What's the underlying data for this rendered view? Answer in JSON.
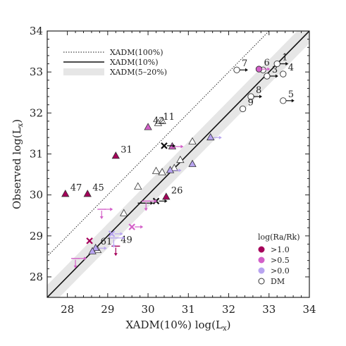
{
  "chart_data": {
    "type": "scatter",
    "xlabel": "XADM(10%) log(L",
    "xlabel_sub": "x",
    "ylabel": "Observed log(L",
    "ylabel_sub": "x",
    "xlim": [
      27.5,
      34
    ],
    "ylim": [
      27.5,
      34
    ],
    "xticks": [
      "28",
      "29",
      "30",
      "31",
      "32",
      "33",
      "34"
    ],
    "yticks": [
      "28",
      "29",
      "30",
      "31",
      "32",
      "33",
      "34"
    ],
    "tick_values": [
      28,
      29,
      30,
      31,
      32,
      33,
      34
    ],
    "band_half_width": 0.3,
    "colors": {
      "dark": "#a5005a",
      "mid": "#d35fc8",
      "light": "#b8a4f0",
      "band": "#e6e6e6"
    },
    "lines_legend": [
      {
        "label": "XADM(100%)",
        "style": "dotted",
        "offset": 1.0
      },
      {
        "label": "XADM(10%)",
        "style": "solid",
        "offset": 0.0
      },
      {
        "label": "XADM(5–20%)",
        "style": "band"
      }
    ],
    "points_legend_title": "log(Ra/Rk)",
    "points_legend": [
      {
        "label": ">1.0",
        "color": "dark"
      },
      {
        "label": ">0.5",
        "color": "mid"
      },
      {
        "label": ">0.0",
        "color": "light"
      },
      {
        "label": "DM",
        "color": "none"
      }
    ],
    "series": [
      {
        "name": "DM",
        "marker": "circle",
        "color": "none",
        "points": [
          {
            "x": 33.2,
            "y": 33.2,
            "label": "1",
            "arrow": "right"
          },
          {
            "x": 32.95,
            "y": 32.9,
            "label": "3",
            "arrow": "right"
          },
          {
            "x": 33.35,
            "y": 32.95,
            "label": "4"
          },
          {
            "x": 33.35,
            "y": 32.3,
            "label": "5",
            "arrow": "right"
          },
          {
            "x": 32.2,
            "y": 33.05,
            "label": "7",
            "arrow": "right"
          },
          {
            "x": 32.55,
            "y": 32.4,
            "label": "8",
            "arrow": "right"
          },
          {
            "x": 32.35,
            "y": 32.1,
            "label": "9"
          },
          {
            "x": 32.85,
            "y": 33.05
          }
        ]
      },
      {
        "name": ">0.5 circle",
        "marker": "circle",
        "color": "mid",
        "points": [
          {
            "x": 32.75,
            "y": 33.07,
            "label": "6",
            "arrow": "right"
          }
        ]
      },
      {
        "name": "DM triangles",
        "marker": "triangle",
        "color": "none",
        "points": [
          {
            "x": 30.25,
            "y": 31.75,
            "label": "11"
          },
          {
            "x": 30.35,
            "y": 31.8
          },
          {
            "x": 31.1,
            "y": 31.3
          },
          {
            "x": 30.8,
            "y": 30.85
          },
          {
            "x": 30.65,
            "y": 30.65
          },
          {
            "x": 30.2,
            "y": 30.58
          },
          {
            "x": 30.35,
            "y": 30.55
          },
          {
            "x": 29.75,
            "y": 30.2
          },
          {
            "x": 29.4,
            "y": 29.55
          },
          {
            "x": 28.75,
            "y": 28.65
          }
        ]
      },
      {
        "name": ">1.0",
        "marker": "triangle",
        "color": "dark",
        "points": [
          {
            "x": 27.95,
            "y": 30.02,
            "label": "47"
          },
          {
            "x": 28.5,
            "y": 30.02,
            "label": "45"
          },
          {
            "x": 29.2,
            "y": 30.95,
            "label": "31"
          },
          {
            "x": 30.45,
            "y": 29.95,
            "label": "26"
          }
        ]
      },
      {
        "name": ">0.5",
        "marker": "triangle",
        "color": "mid",
        "points": [
          {
            "x": 30.0,
            "y": 31.65,
            "label": "42"
          },
          {
            "x": 30.6,
            "y": 31.18,
            "arrow": "right"
          }
        ]
      },
      {
        "name": ">0.0",
        "marker": "triangle",
        "color": "light",
        "points": [
          {
            "x": 31.55,
            "y": 31.4,
            "arrow": "right"
          },
          {
            "x": 31.1,
            "y": 30.75
          },
          {
            "x": 30.55,
            "y": 30.6,
            "arrow": "right"
          },
          {
            "x": 28.7,
            "y": 28.7,
            "label": "61",
            "arrow": "right"
          },
          {
            "x": 28.62,
            "y": 28.62
          }
        ]
      },
      {
        "name": "crosses",
        "marker": "x",
        "color": "none",
        "points": [
          {
            "x": 30.4,
            "y": 31.2,
            "color": "#111111",
            "arrow": "right"
          },
          {
            "x": 30.2,
            "y": 29.85,
            "color": "#111111",
            "arrow": "right"
          },
          {
            "x": 28.55,
            "y": 28.88,
            "color": "dark"
          },
          {
            "x": 29.6,
            "y": 29.22,
            "color": "mid",
            "arrow": "right"
          },
          {
            "x": 29.1,
            "y": 29.05,
            "color": "light",
            "arrow": "right"
          }
        ]
      },
      {
        "name": "limits",
        "marker": "limit",
        "color": "none",
        "points": [
          {
            "x": 29.2,
            "y": 28.75,
            "label": "49",
            "color": "dark",
            "arrow": "down"
          },
          {
            "x": 29.85,
            "y": 29.8,
            "color": "#111111",
            "arrow": "right"
          },
          {
            "x": 28.85,
            "y": 29.65,
            "color": "mid",
            "arrow": "downright"
          },
          {
            "x": 29.95,
            "y": 29.85,
            "color": "mid",
            "arrow": "downright"
          },
          {
            "x": 28.2,
            "y": 28.45,
            "color": "mid",
            "arrow": "downright"
          },
          {
            "x": 29.15,
            "y": 28.95,
            "color": "light",
            "arrow": "downright"
          }
        ]
      }
    ]
  }
}
